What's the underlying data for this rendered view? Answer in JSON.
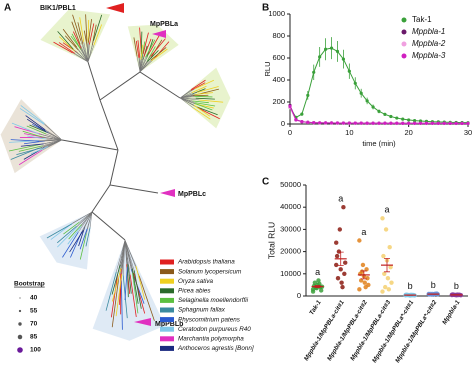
{
  "panel_labels": [
    "A",
    "B",
    "C"
  ],
  "tree": {
    "labels": [
      "BIK1/PBL1",
      "MpPBLa",
      "MpPBLc",
      "MpPBLb"
    ],
    "species": [
      {
        "name": "Arabidopsis thaliana",
        "color": "#e02020"
      },
      {
        "name": "Solanum lycopersicum",
        "color": "#8b5a1a"
      },
      {
        "name": "Oryza sativa",
        "color": "#f0d020"
      },
      {
        "name": "Picea abies",
        "color": "#2a6a2a"
      },
      {
        "name": "Selaginella moellendorffii",
        "color": "#5cc040"
      },
      {
        "name": "Sphagnum fallax",
        "color": "#3a8aa0"
      },
      {
        "name": "Physcomitrium patens",
        "color": "#2a5ad0"
      },
      {
        "name": "Ceratodon purpureus R40",
        "color": "#80c8e8"
      },
      {
        "name": "Marchantia polymorpha",
        "color": "#e030c0"
      },
      {
        "name": "Anthoceros agrestis [Bonn]",
        "color": "#1a2a80"
      }
    ],
    "bootstrap": {
      "title": "Bootstrap",
      "values": [
        40,
        55,
        70,
        85,
        100
      ]
    }
  },
  "chart_data": [
    {
      "type": "line",
      "xlabel": "time (min)",
      "ylabel": "RLU",
      "x": [
        0,
        1,
        2,
        3,
        4,
        5,
        6,
        7,
        8,
        9,
        10,
        11,
        12,
        13,
        14,
        15,
        16,
        17,
        18,
        19,
        20,
        21,
        22,
        23,
        24,
        25,
        26,
        27,
        28,
        29,
        30
      ],
      "xlim": [
        0,
        30
      ],
      "xticks": [
        0,
        10,
        20,
        30
      ],
      "ylim": [
        0,
        1000
      ],
      "yticks": [
        0,
        200,
        400,
        600,
        800,
        1000
      ],
      "series": [
        {
          "name": "Tak-1",
          "color": "#3aa03a",
          "values": [
            150,
            60,
            90,
            260,
            470,
            610,
            680,
            690,
            660,
            590,
            480,
            370,
            280,
            210,
            155,
            115,
            88,
            68,
            54,
            44,
            37,
            31,
            27,
            24,
            21,
            19,
            17,
            15,
            14,
            13,
            12
          ],
          "errors": [
            20,
            10,
            15,
            40,
            70,
            90,
            100,
            100,
            95,
            85,
            70,
            55,
            40,
            30,
            22,
            17,
            13,
            10,
            8,
            7,
            6,
            5,
            5,
            4,
            4,
            4,
            3,
            3,
            3,
            3,
            3
          ]
        },
        {
          "name": "Mppbla-1",
          "color": "#6a1a6a",
          "values": [
            170,
            40,
            22,
            16,
            13,
            11,
            10,
            10,
            9,
            9,
            9,
            8,
            8,
            8,
            8,
            8,
            8,
            7,
            7,
            7,
            7,
            7,
            7,
            7,
            7,
            6,
            6,
            6,
            6,
            6,
            6
          ]
        },
        {
          "name": "Mppbla-2",
          "color": "#f0a0e0",
          "values": [
            150,
            35,
            20,
            15,
            12,
            10,
            9,
            9,
            8,
            8,
            8,
            8,
            7,
            7,
            7,
            7,
            7,
            7,
            6,
            6,
            6,
            6,
            6,
            6,
            6,
            6,
            6,
            6,
            5,
            5,
            5
          ]
        },
        {
          "name": "Mppbla-3",
          "color": "#d020c0",
          "values": [
            160,
            38,
            21,
            15,
            12,
            10,
            10,
            9,
            9,
            8,
            8,
            8,
            8,
            7,
            7,
            7,
            7,
            7,
            7,
            6,
            6,
            6,
            6,
            6,
            6,
            6,
            6,
            5,
            5,
            5,
            5
          ]
        }
      ],
      "legend": "top-right"
    },
    {
      "type": "dot",
      "ylabel": "Total RLU",
      "categories": [
        "Tak-1",
        "Mppbla-1/MpPBLa-cit#1",
        "Mppbla-1/MpPBLa-cit#2",
        "Mppbla-1/MpPBLa-cit#3",
        "Mppbla-1/MpPBLa*-cit#1",
        "Mppbla-1/MpPBLa*-cit#2",
        "Mppbla-1"
      ],
      "colors": [
        "#3aa03a",
        "#8b1a10",
        "#e0801a",
        "#f5d070",
        "#7ec8e8",
        "#6a8fd8",
        "#8a3a9a"
      ],
      "points": [
        [
          3000,
          3500,
          4000,
          4500,
          5000,
          2500,
          6000,
          7000,
          4200,
          3800,
          5500,
          2000
        ],
        [
          24000,
          30000,
          40000,
          18000,
          12000,
          10000,
          8000,
          6000,
          15000,
          20000,
          4000,
          14000
        ],
        [
          25000,
          14000,
          12000,
          10000,
          9000,
          8000,
          7000,
          6000,
          5000,
          11000,
          4000,
          3000
        ],
        [
          35000,
          30000,
          22000,
          18000,
          16000,
          13000,
          10000,
          8000,
          6000,
          4000,
          3000,
          2000
        ],
        [
          300,
          400,
          500,
          600,
          200,
          350,
          450,
          550,
          250,
          400,
          300,
          500
        ],
        [
          800,
          900,
          1000,
          700,
          600,
          1100,
          950,
          850,
          750,
          650,
          1000,
          900
        ],
        [
          400,
          500,
          600,
          700,
          300,
          450,
          550,
          650,
          350,
          500,
          400,
          600
        ]
      ],
      "means": [
        4250,
        16750,
        9500,
        13900,
        400,
        850,
        500
      ],
      "sem": [
        450,
        3000,
        1800,
        3000,
        40,
        45,
        35
      ],
      "letters": [
        "a",
        "a",
        "a",
        "a",
        "b",
        "b",
        "b"
      ],
      "ylim": [
        0,
        50000
      ],
      "yticks": [
        0,
        10000,
        20000,
        30000,
        40000,
        50000
      ]
    }
  ]
}
